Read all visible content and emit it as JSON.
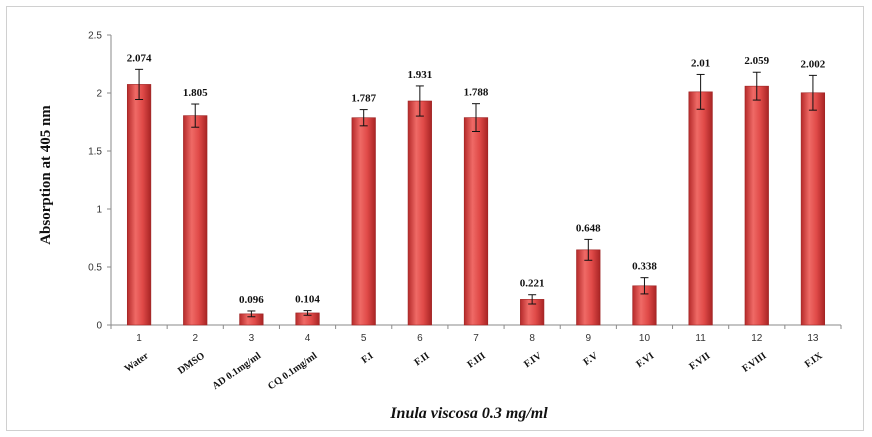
{
  "chart_data": {
    "type": "bar",
    "title": "",
    "xlabel": "Inula viscosa 0.3 mg/ml",
    "ylabel": "Absorption at 405 nm",
    "ylim": [
      0,
      2.5
    ],
    "yticks": [
      "0",
      "0.5",
      "1",
      "1.5",
      "2",
      "2.5"
    ],
    "numbers": [
      "1",
      "2",
      "3",
      "4",
      "5",
      "6",
      "7",
      "8",
      "9",
      "10",
      "11",
      "12",
      "13"
    ],
    "categories": [
      "Water",
      "DMSO",
      "AD 0.1mg/ml",
      "CQ 0.1mg/ml",
      "F.I",
      "F.II",
      "F.III",
      "F.IV",
      "F.V",
      "F.VI",
      "F.VII",
      "F.VIII",
      "F.IX"
    ],
    "values": [
      2.074,
      1.805,
      0.096,
      0.104,
      1.787,
      1.931,
      1.788,
      0.221,
      0.648,
      0.338,
      2.01,
      2.059,
      2.002
    ],
    "data_labels": [
      "2.074",
      "1.805",
      "0.096",
      "0.104",
      "1.787",
      "1.931",
      "1.788",
      "0.221",
      "0.648",
      "0.338",
      "2.01",
      "2.059",
      "2.002"
    ],
    "errors": [
      0.13,
      0.1,
      0.025,
      0.02,
      0.07,
      0.13,
      0.12,
      0.04,
      0.09,
      0.07,
      0.15,
      0.12,
      0.15
    ],
    "bar_color": "#d9403f",
    "grid": false
  }
}
